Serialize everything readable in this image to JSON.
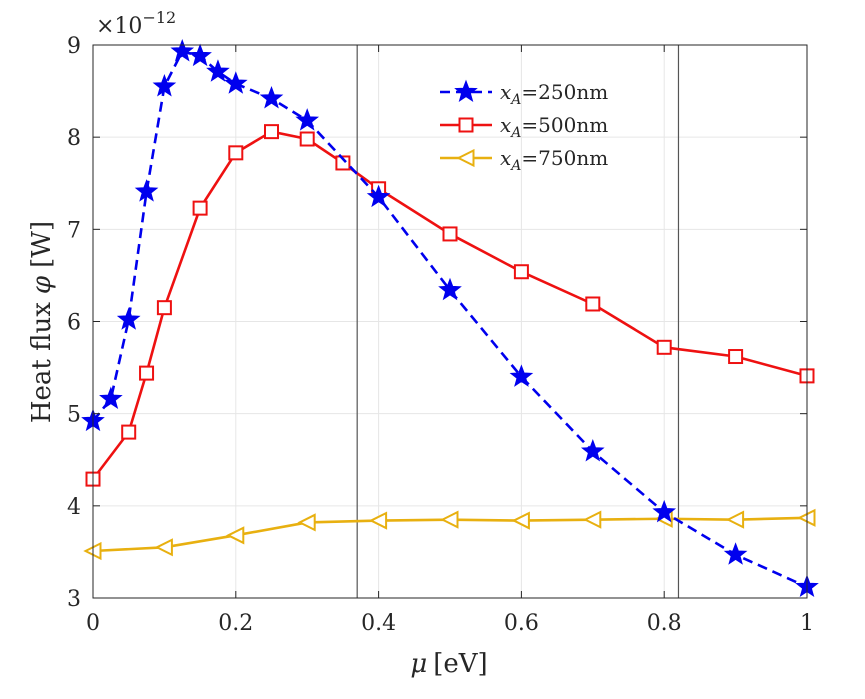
{
  "chart_data": {
    "type": "line",
    "title": "",
    "xlabel_symbol": "μ",
    "xlabel_unit": "[eV]",
    "ylabel_text": "Heat flux",
    "ylabel_symbol": "φ",
    "ylabel_unit": "[W]",
    "exponent_base": "×10",
    "exponent_power": "−12",
    "xlim": [
      0,
      1
    ],
    "ylim": [
      3,
      9
    ],
    "xticks": [
      0,
      0.2,
      0.4,
      0.6,
      0.8,
      1
    ],
    "xtick_labels": [
      "0",
      "0.2",
      "0.4",
      "0.6",
      "0.8",
      "1"
    ],
    "yticks": [
      3,
      4,
      5,
      6,
      7,
      8,
      9
    ],
    "ytick_labels": [
      "3",
      "4",
      "5",
      "6",
      "7",
      "8",
      "9"
    ],
    "grid": true,
    "legend_position": "top-right",
    "vertical_lines_x": [
      0.37,
      0.82
    ],
    "series": [
      {
        "name_sub": "A",
        "name_value": "=250nm",
        "color": "#0000ee",
        "marker": "star",
        "line_style": "dashed",
        "x": [
          0,
          0.025,
          0.05,
          0.075,
          0.1,
          0.125,
          0.15,
          0.175,
          0.2,
          0.25,
          0.3,
          0.4,
          0.5,
          0.6,
          0.7,
          0.8,
          0.9,
          1.0
        ],
        "y": [
          4.92,
          5.16,
          6.02,
          7.41,
          8.55,
          8.93,
          8.88,
          8.71,
          8.58,
          8.42,
          8.18,
          7.35,
          6.34,
          5.4,
          4.59,
          3.93,
          3.47,
          3.12
        ]
      },
      {
        "name_sub": "A",
        "name_value": "=500nm",
        "color": "#ee1111",
        "marker": "square",
        "line_style": "solid",
        "x": [
          0,
          0.05,
          0.075,
          0.1,
          0.15,
          0.2,
          0.25,
          0.3,
          0.35,
          0.4,
          0.5,
          0.6,
          0.7,
          0.8,
          0.9,
          1.0
        ],
        "y": [
          4.29,
          4.8,
          5.44,
          6.15,
          7.23,
          7.83,
          8.06,
          7.98,
          7.72,
          7.44,
          6.95,
          6.54,
          6.19,
          5.72,
          5.62,
          5.41
        ]
      },
      {
        "name_sub": "A",
        "name_value": "=750nm",
        "color": "#e8b010",
        "marker": "triangle-left",
        "line_style": "solid",
        "x": [
          0,
          0.1,
          0.2,
          0.3,
          0.4,
          0.5,
          0.6,
          0.7,
          0.8,
          0.9,
          1.0
        ],
        "y": [
          3.51,
          3.55,
          3.68,
          3.82,
          3.84,
          3.85,
          3.84,
          3.85,
          3.86,
          3.85,
          3.87
        ]
      }
    ]
  }
}
